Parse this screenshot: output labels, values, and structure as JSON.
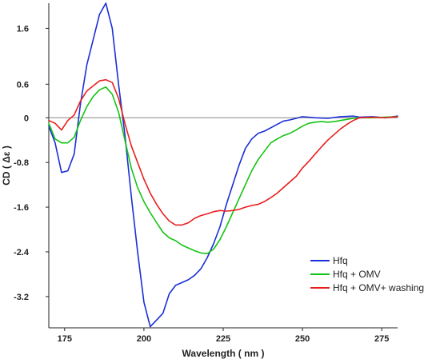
{
  "chart_data": {
    "type": "line",
    "title": "",
    "xlabel": "Wavelength ( nm )",
    "ylabel": "CD ( Δε )",
    "xlim": [
      170,
      280
    ],
    "ylim": [
      -3.76,
      2.05
    ],
    "x_ticks": [
      175,
      200,
      225,
      250,
      275
    ],
    "y_ticks": [
      1.6,
      0.6,
      0,
      -0.8,
      -1.6,
      -2.4,
      -3.2
    ],
    "y_tick_labels": [
      "1.6",
      "0.6",
      "0",
      "-0.8",
      "-1.6",
      "-2.4",
      "-3.2"
    ],
    "legend_position": "bottom-right",
    "zero_line": true,
    "series": [
      {
        "name": "Hfq",
        "color": "#1a2fd6",
        "points": [
          [
            170,
            -0.15
          ],
          [
            172,
            -0.45
          ],
          [
            174,
            -0.98
          ],
          [
            176,
            -0.95
          ],
          [
            178,
            -0.65
          ],
          [
            180,
            0.25
          ],
          [
            182,
            0.95
          ],
          [
            184,
            1.4
          ],
          [
            186,
            1.85
          ],
          [
            188,
            2.05
          ],
          [
            190,
            1.6
          ],
          [
            192,
            0.6
          ],
          [
            194,
            -0.3
          ],
          [
            196,
            -1.4
          ],
          [
            198,
            -2.4
          ],
          [
            200,
            -3.3
          ],
          [
            202,
            -3.74
          ],
          [
            204,
            -3.62
          ],
          [
            206,
            -3.5
          ],
          [
            208,
            -3.15
          ],
          [
            210,
            -3.0
          ],
          [
            212,
            -2.95
          ],
          [
            214,
            -2.9
          ],
          [
            216,
            -2.82
          ],
          [
            218,
            -2.7
          ],
          [
            220,
            -2.5
          ],
          [
            222,
            -2.25
          ],
          [
            224,
            -1.95
          ],
          [
            226,
            -1.55
          ],
          [
            228,
            -1.2
          ],
          [
            230,
            -0.85
          ],
          [
            232,
            -0.55
          ],
          [
            234,
            -0.38
          ],
          [
            236,
            -0.28
          ],
          [
            238,
            -0.24
          ],
          [
            240,
            -0.18
          ],
          [
            242,
            -0.12
          ],
          [
            244,
            -0.06
          ],
          [
            246,
            -0.04
          ],
          [
            248,
            -0.01
          ],
          [
            250,
            0.02
          ],
          [
            254,
            0.0
          ],
          [
            258,
            -0.01
          ],
          [
            262,
            0.02
          ],
          [
            266,
            0.03
          ],
          [
            268,
            0.01
          ],
          [
            272,
            0.02
          ],
          [
            276,
            0.0
          ],
          [
            280,
            0.03
          ]
        ]
      },
      {
        "name": "Hfq + OMV",
        "color": "#14c414",
        "points": [
          [
            170,
            -0.1
          ],
          [
            172,
            -0.38
          ],
          [
            174,
            -0.45
          ],
          [
            176,
            -0.45
          ],
          [
            178,
            -0.35
          ],
          [
            180,
            -0.05
          ],
          [
            182,
            0.2
          ],
          [
            184,
            0.38
          ],
          [
            186,
            0.5
          ],
          [
            188,
            0.55
          ],
          [
            190,
            0.42
          ],
          [
            192,
            0.1
          ],
          [
            194,
            -0.4
          ],
          [
            196,
            -0.9
          ],
          [
            198,
            -1.25
          ],
          [
            200,
            -1.5
          ],
          [
            202,
            -1.7
          ],
          [
            204,
            -1.88
          ],
          [
            206,
            -2.05
          ],
          [
            208,
            -2.15
          ],
          [
            210,
            -2.2
          ],
          [
            212,
            -2.28
          ],
          [
            214,
            -2.33
          ],
          [
            216,
            -2.38
          ],
          [
            218,
            -2.42
          ],
          [
            220,
            -2.43
          ],
          [
            222,
            -2.35
          ],
          [
            224,
            -2.18
          ],
          [
            226,
            -1.95
          ],
          [
            228,
            -1.7
          ],
          [
            230,
            -1.45
          ],
          [
            232,
            -1.2
          ],
          [
            234,
            -0.95
          ],
          [
            236,
            -0.75
          ],
          [
            238,
            -0.6
          ],
          [
            240,
            -0.45
          ],
          [
            242,
            -0.38
          ],
          [
            244,
            -0.32
          ],
          [
            246,
            -0.28
          ],
          [
            248,
            -0.22
          ],
          [
            250,
            -0.15
          ],
          [
            252,
            -0.1
          ],
          [
            254,
            -0.08
          ],
          [
            256,
            -0.07
          ],
          [
            258,
            -0.08
          ],
          [
            260,
            -0.07
          ],
          [
            262,
            -0.05
          ],
          [
            264,
            -0.03
          ],
          [
            266,
            -0.01
          ],
          [
            268,
            0.0
          ],
          [
            272,
            0.0
          ],
          [
            276,
            0.01
          ],
          [
            280,
            0.02
          ]
        ]
      },
      {
        "name": "Hfq + OMV+ washing",
        "color": "#e81f1f",
        "points": [
          [
            170,
            -0.05
          ],
          [
            172,
            -0.1
          ],
          [
            174,
            -0.22
          ],
          [
            176,
            -0.05
          ],
          [
            178,
            0.05
          ],
          [
            180,
            0.3
          ],
          [
            182,
            0.48
          ],
          [
            184,
            0.57
          ],
          [
            186,
            0.66
          ],
          [
            188,
            0.68
          ],
          [
            190,
            0.63
          ],
          [
            192,
            0.35
          ],
          [
            194,
            -0.1
          ],
          [
            196,
            -0.5
          ],
          [
            198,
            -0.8
          ],
          [
            200,
            -1.1
          ],
          [
            202,
            -1.35
          ],
          [
            204,
            -1.55
          ],
          [
            206,
            -1.72
          ],
          [
            208,
            -1.85
          ],
          [
            210,
            -1.92
          ],
          [
            212,
            -1.92
          ],
          [
            214,
            -1.88
          ],
          [
            216,
            -1.8
          ],
          [
            218,
            -1.75
          ],
          [
            220,
            -1.72
          ],
          [
            222,
            -1.68
          ],
          [
            224,
            -1.66
          ],
          [
            226,
            -1.67
          ],
          [
            228,
            -1.66
          ],
          [
            230,
            -1.64
          ],
          [
            232,
            -1.6
          ],
          [
            234,
            -1.57
          ],
          [
            236,
            -1.55
          ],
          [
            238,
            -1.5
          ],
          [
            240,
            -1.43
          ],
          [
            242,
            -1.35
          ],
          [
            244,
            -1.25
          ],
          [
            246,
            -1.15
          ],
          [
            248,
            -1.05
          ],
          [
            250,
            -0.9
          ],
          [
            252,
            -0.78
          ],
          [
            254,
            -0.65
          ],
          [
            256,
            -0.52
          ],
          [
            258,
            -0.4
          ],
          [
            260,
            -0.3
          ],
          [
            262,
            -0.2
          ],
          [
            264,
            -0.12
          ],
          [
            266,
            -0.05
          ],
          [
            268,
            0.0
          ],
          [
            272,
            0.01
          ],
          [
            276,
            0.0
          ],
          [
            280,
            0.02
          ]
        ]
      }
    ]
  }
}
